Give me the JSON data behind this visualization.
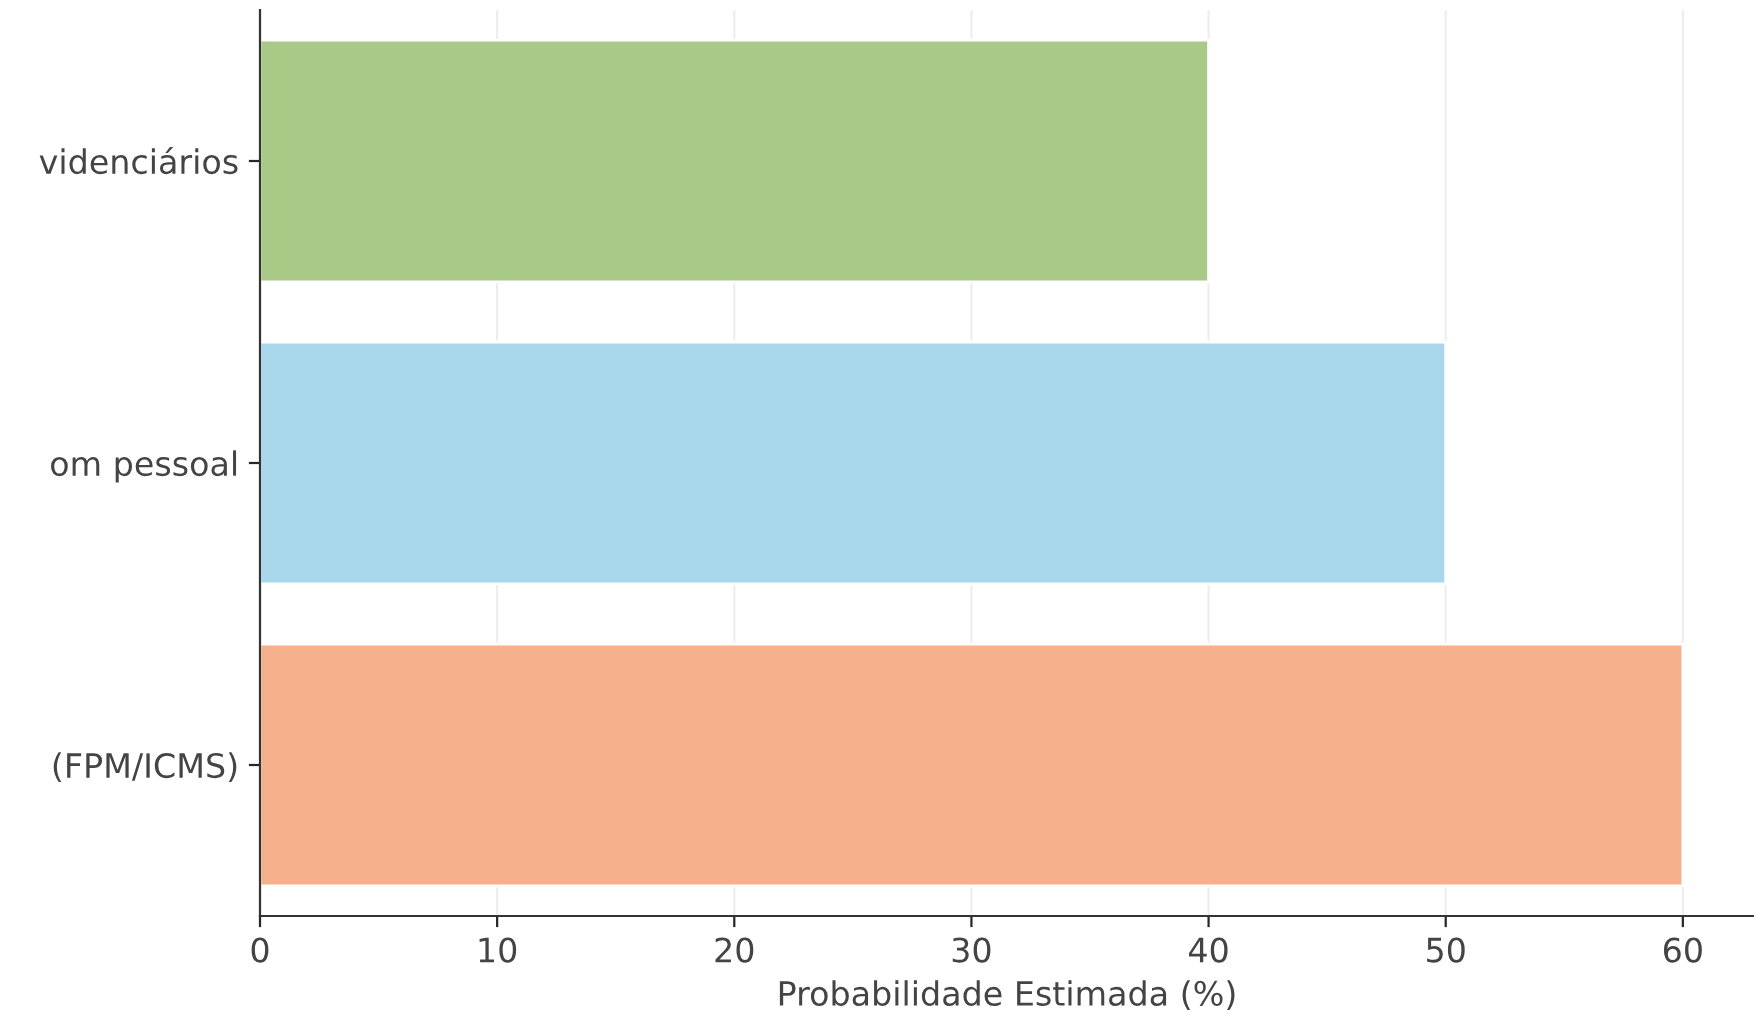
{
  "chart_data": {
    "type": "bar",
    "orientation": "horizontal",
    "categories": [
      "videnciários",
      "om pessoal",
      "(FPM/ICMS)"
    ],
    "values": [
      40,
      50,
      60
    ],
    "colors": [
      "#a9c987",
      "#a9d8ec",
      "#f7b08c"
    ],
    "xlabel": "Probabilidade Estimada (%)",
    "xlim": [
      0,
      63
    ],
    "xticks": [
      0,
      10,
      20,
      30,
      40,
      50,
      60
    ],
    "grid": "x"
  }
}
